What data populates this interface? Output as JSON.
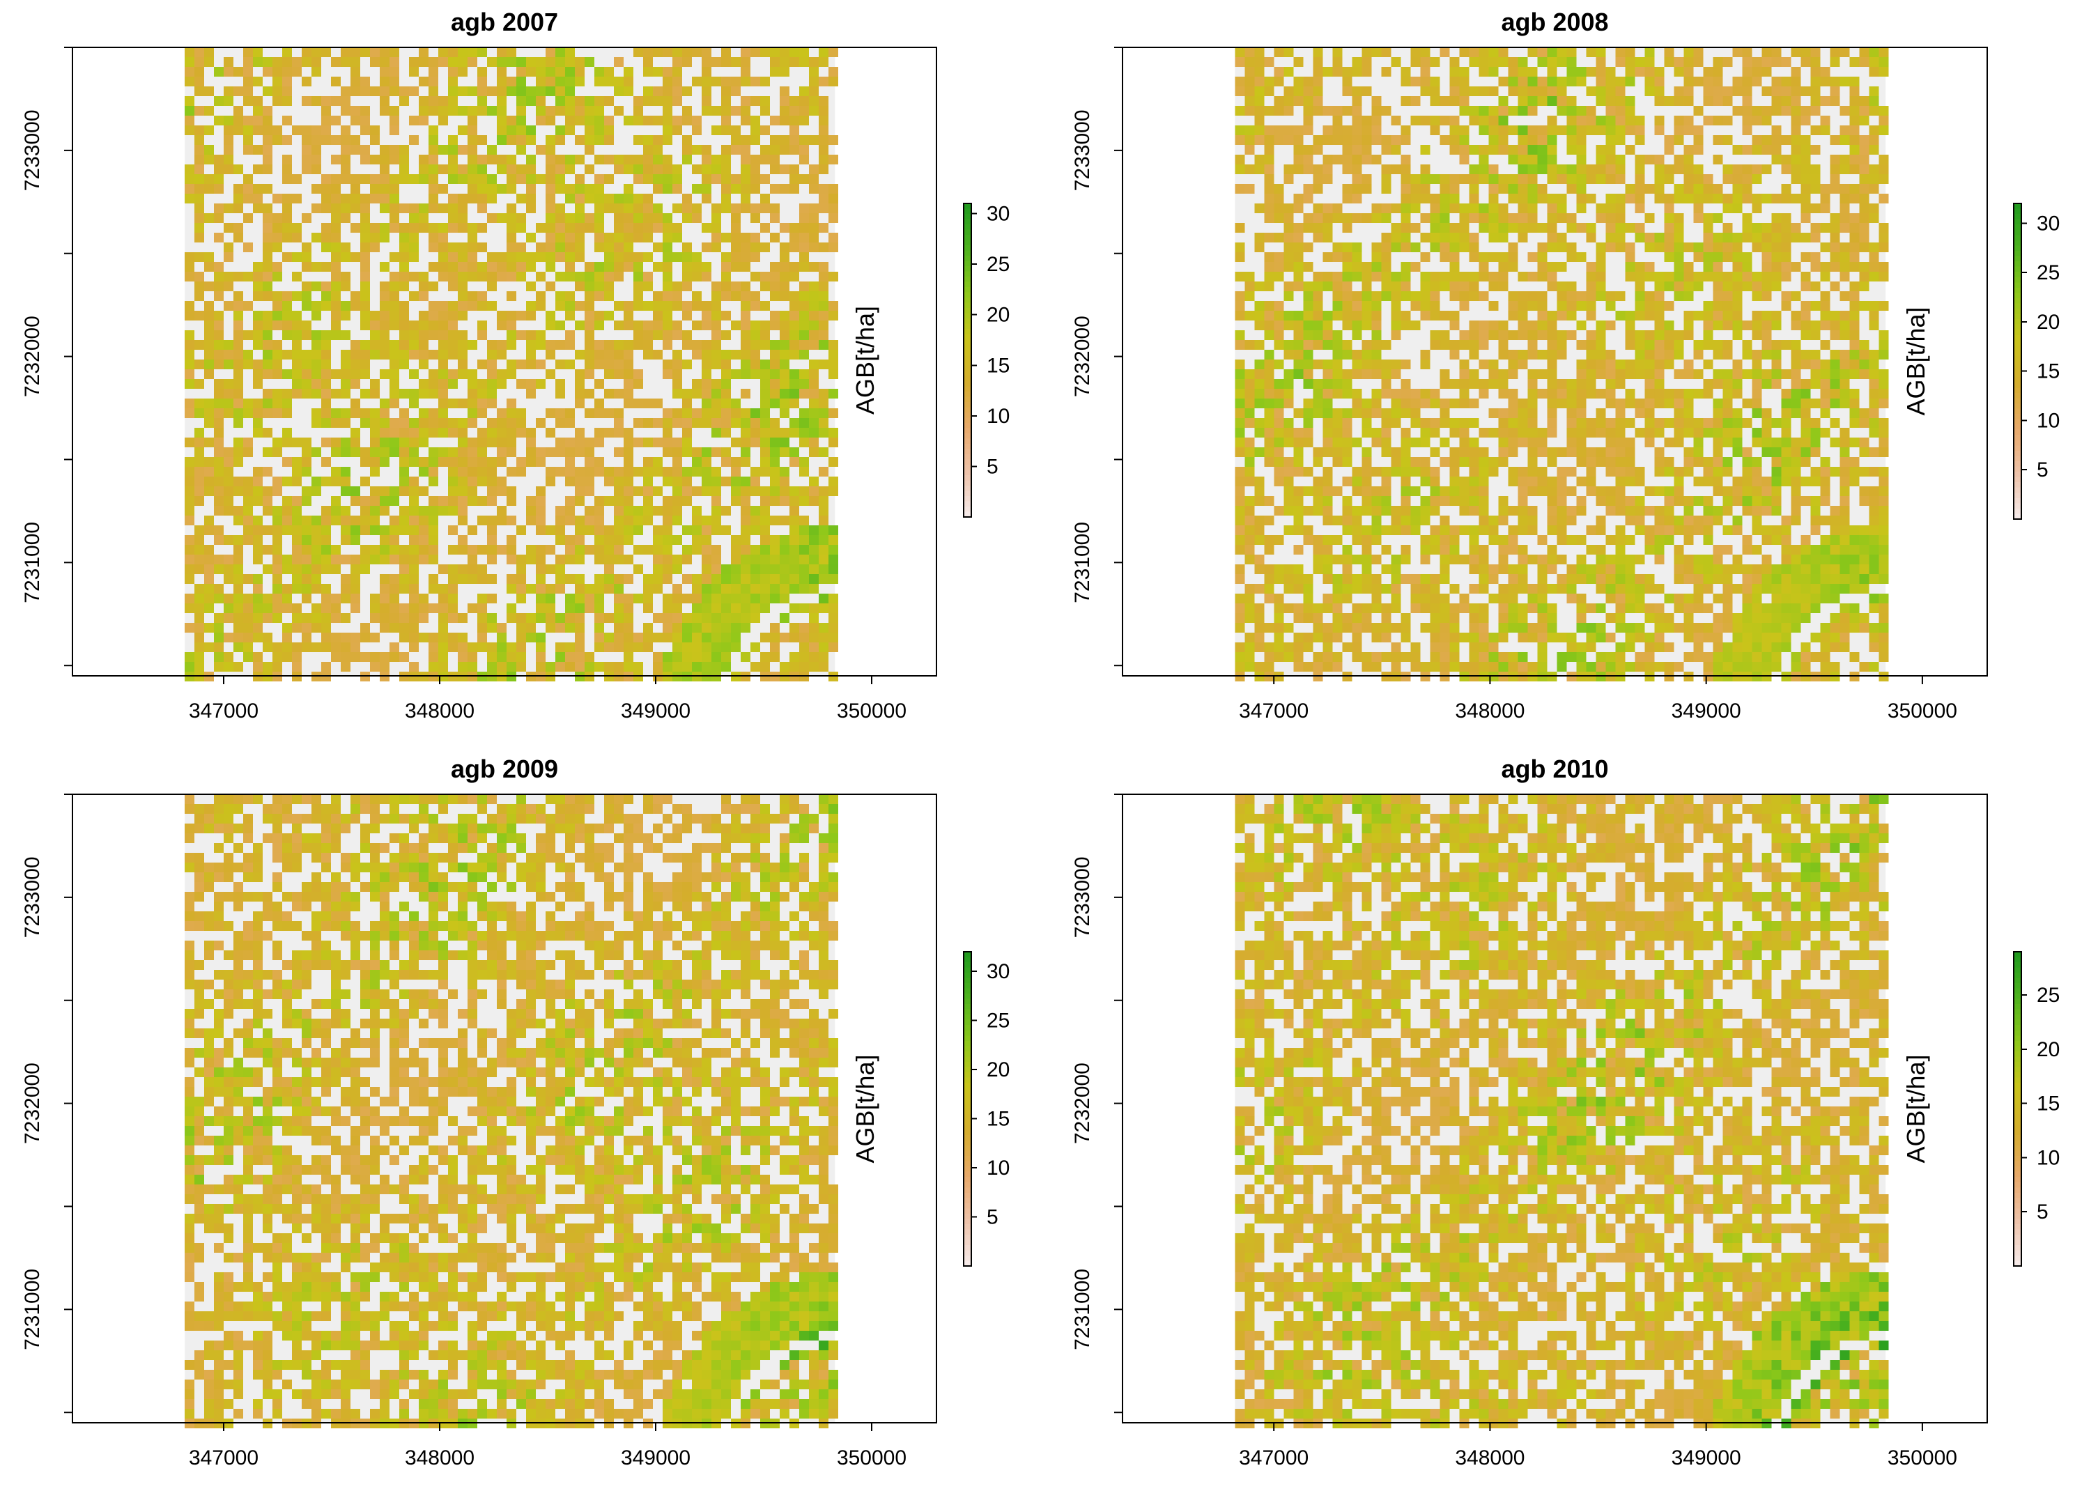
{
  "colors": {
    "raster_background": "#efefef",
    "ramp_low": "#f7ecec",
    "ramp_1": "#eec3aa",
    "ramp_2": "#e8a96a",
    "ramp_3": "#d5ad2d",
    "ramp_4": "#c9c41a",
    "ramp_5": "#8fc81a",
    "ramp_6": "#4db21e",
    "ramp_high": "#1f9a1f",
    "axis": "#000000"
  },
  "chart_data": [
    {
      "type": "heatmap",
      "title": "agb 2007",
      "xlim": [
        346300,
        350300
      ],
      "ylim": [
        7230450,
        7233500
      ],
      "raster_extent": {
        "x": [
          346820,
          349830
        ],
        "y": [
          7230450,
          7233500
        ]
      },
      "x_ticks": [
        "347000",
        "348000",
        "349000",
        "350000"
      ],
      "y_ticks": [
        "7231000",
        "7232000",
        "7233000"
      ],
      "legend": {
        "title": "AGB[t/ha]",
        "range": [
          0,
          31
        ],
        "ticks": [
          "5",
          "10",
          "15",
          "20",
          "25",
          "30"
        ]
      },
      "seed": 2007
    },
    {
      "type": "heatmap",
      "title": "agb 2008",
      "xlim": [
        346300,
        350300
      ],
      "ylim": [
        7230450,
        7233500
      ],
      "raster_extent": {
        "x": [
          346820,
          349830
        ],
        "y": [
          7230450,
          7233500
        ]
      },
      "x_ticks": [
        "347000",
        "348000",
        "349000",
        "350000"
      ],
      "y_ticks": [
        "7231000",
        "7232000",
        "7233000"
      ],
      "legend": {
        "title": "AGB[t/ha]",
        "range": [
          0,
          32
        ],
        "ticks": [
          "5",
          "10",
          "15",
          "20",
          "25",
          "30"
        ]
      },
      "seed": 2008
    },
    {
      "type": "heatmap",
      "title": "agb 2009",
      "xlim": [
        346300,
        350300
      ],
      "ylim": [
        7230450,
        7233500
      ],
      "raster_extent": {
        "x": [
          346820,
          349830
        ],
        "y": [
          7230450,
          7233500
        ]
      },
      "x_ticks": [
        "347000",
        "348000",
        "349000",
        "350000"
      ],
      "y_ticks": [
        "7231000",
        "7232000",
        "7233000"
      ],
      "legend": {
        "title": "AGB[t/ha]",
        "range": [
          0,
          32
        ],
        "ticks": [
          "5",
          "10",
          "15",
          "20",
          "25",
          "30"
        ]
      },
      "seed": 2009
    },
    {
      "type": "heatmap",
      "title": "agb 2010",
      "xlim": [
        346300,
        350300
      ],
      "ylim": [
        7230450,
        7233500
      ],
      "raster_extent": {
        "x": [
          346820,
          349830
        ],
        "y": [
          7230450,
          7233500
        ]
      },
      "x_ticks": [
        "347000",
        "348000",
        "349000",
        "350000"
      ],
      "y_ticks": [
        "7231000",
        "7232000",
        "7233000"
      ],
      "legend": {
        "title": "AGB[t/ha]",
        "range": [
          0,
          29
        ],
        "ticks": [
          "5",
          "10",
          "15",
          "20",
          "25"
        ]
      },
      "seed": 2010
    }
  ]
}
